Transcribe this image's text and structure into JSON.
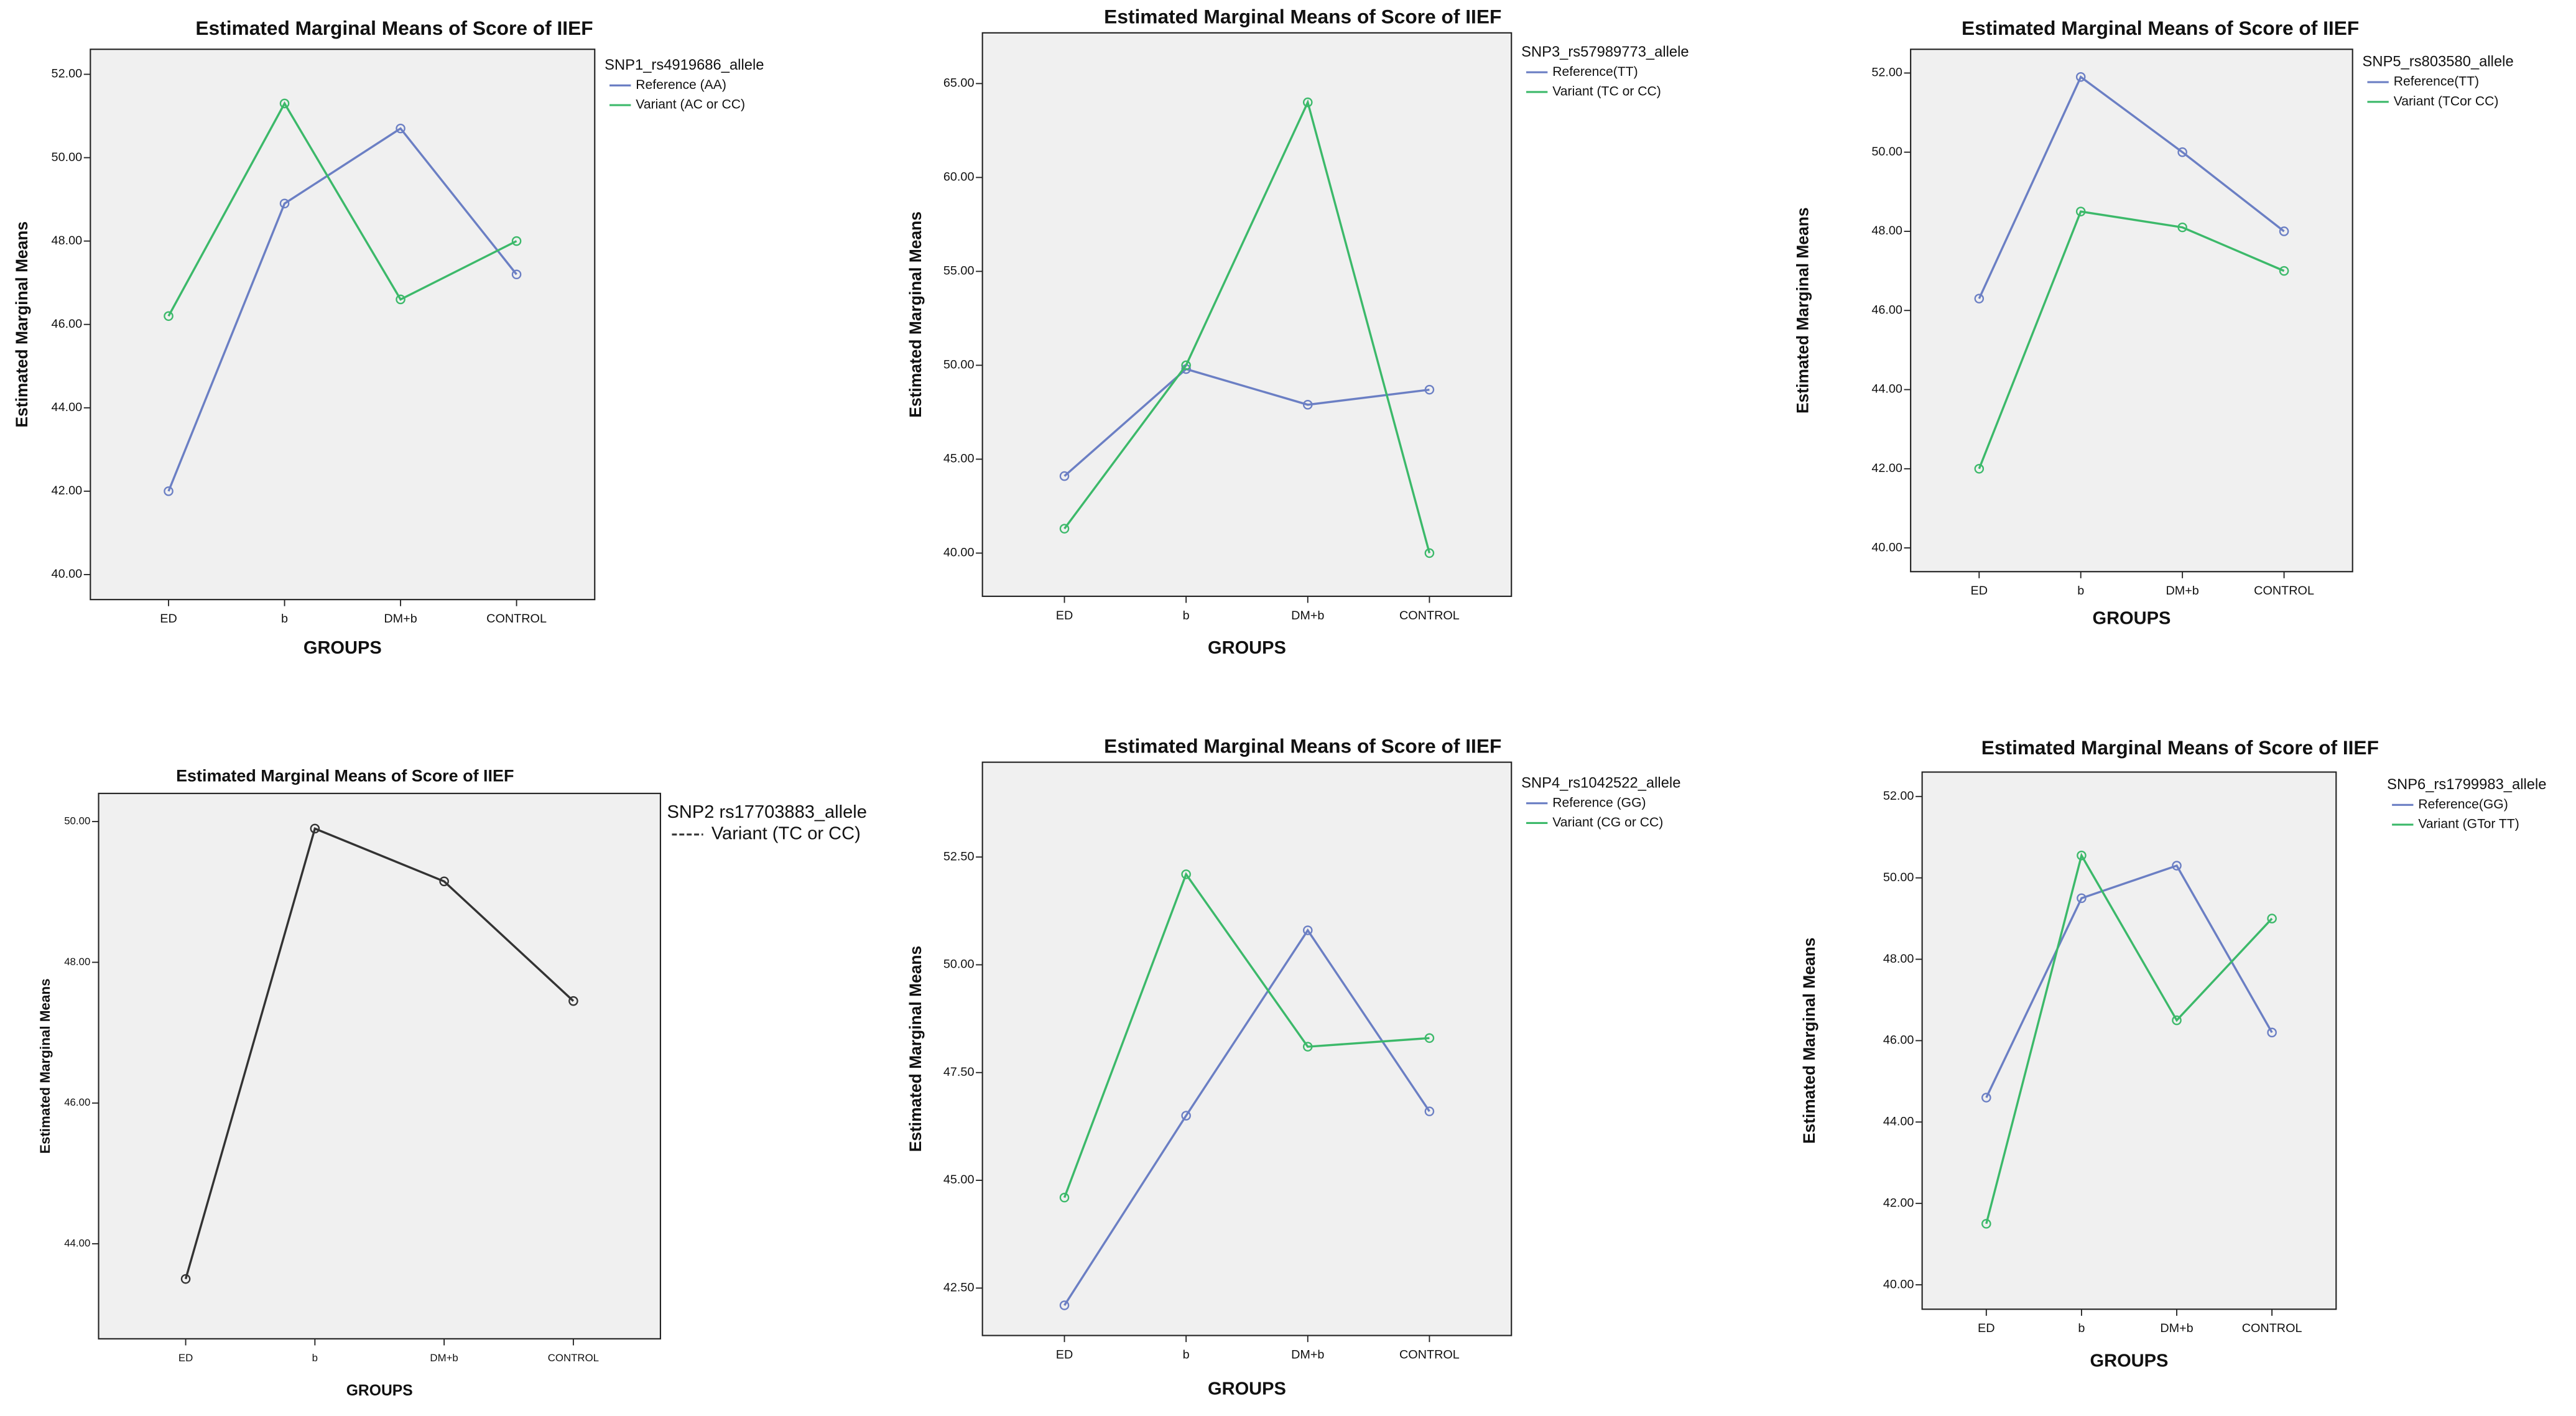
{
  "chart_data": [
    {
      "type": "line",
      "title": "Estimated Marginal Means of Score of IIEF",
      "x_label": "GROUPS",
      "y_label": "Estimated Marginal Means",
      "legend_title": "SNP1_rs4919686_allele",
      "categories": [
        "ED",
        "b",
        "DM+b",
        "CONTROL"
      ],
      "series": [
        {
          "name": "Reference  (AA)",
          "color": "#6b7fc4",
          "values": [
            42.0,
            48.9,
            50.7,
            47.2
          ]
        },
        {
          "name": "Variant (AC or CC)",
          "color": "#3cb96a",
          "values": [
            46.2,
            51.3,
            46.6,
            48.0
          ]
        }
      ],
      "ylim": [
        39.4,
        52.6
      ],
      "yticks": [
        {
          "value": 40,
          "label": "40.00"
        },
        {
          "value": 42,
          "label": "42.00"
        },
        {
          "value": 44,
          "label": "44.00"
        },
        {
          "value": 46,
          "label": "46.00"
        },
        {
          "value": 48,
          "label": "48.00"
        },
        {
          "value": 50,
          "label": "50.00"
        },
        {
          "value": 52,
          "label": "52.00"
        }
      ]
    },
    {
      "type": "line",
      "title": "Estimated Marginal Means of Score of IIEF",
      "x_label": "GROUPS",
      "y_label": "Estimated Marginal Means",
      "legend_title": "SNP3_rs57989773_allele",
      "categories": [
        "ED",
        "b",
        "DM+b",
        "CONTROL"
      ],
      "series": [
        {
          "name": "Reference(TT)",
          "color": "#6b7fc4",
          "values": [
            44.1,
            49.8,
            47.9,
            48.7
          ]
        },
        {
          "name": "Variant (TC or CC)",
          "color": "#3cb96a",
          "values": [
            41.3,
            50.0,
            64.0,
            40.0
          ]
        }
      ],
      "ylim": [
        37.7,
        67.7
      ],
      "yticks": [
        {
          "value": 40,
          "label": "40.00"
        },
        {
          "value": 45,
          "label": "45.00"
        },
        {
          "value": 50,
          "label": "50.00"
        },
        {
          "value": 55,
          "label": "55.00"
        },
        {
          "value": 60,
          "label": "60.00"
        },
        {
          "value": 65,
          "label": "65.00"
        }
      ]
    },
    {
      "type": "line",
      "title": "Estimated Marginal Means of Score of IIEF",
      "x_label": "GROUPS",
      "y_label": "Estimated Marginal Means",
      "legend_title": "SNP5_rs803580_allele",
      "categories": [
        "ED",
        "b",
        "DM+b",
        "CONTROL"
      ],
      "series": [
        {
          "name": "Reference(TT)",
          "color": "#6b7fc4",
          "values": [
            46.3,
            51.9,
            50.0,
            48.0
          ]
        },
        {
          "name": "Variant (TCor CC)",
          "color": "#3cb96a",
          "values": [
            42.0,
            48.5,
            48.1,
            47.0
          ]
        }
      ],
      "ylim": [
        39.4,
        52.6
      ],
      "yticks": [
        {
          "value": 40,
          "label": "40.00"
        },
        {
          "value": 42,
          "label": "42.00"
        },
        {
          "value": 44,
          "label": "44.00"
        },
        {
          "value": 46,
          "label": "46.00"
        },
        {
          "value": 48,
          "label": "48.00"
        },
        {
          "value": 50,
          "label": "50.00"
        },
        {
          "value": 52,
          "label": "52.00"
        }
      ]
    },
    {
      "type": "line",
      "title": "Estimated Marginal Means of Score of IIEF",
      "x_label": "GROUPS",
      "y_label": "Estimated Marginal Means",
      "legend_title": "SNP2 rs17703883_allele",
      "categories": [
        "ED",
        "b",
        "DM+b",
        "CONTROL"
      ],
      "series": [
        {
          "name": "Variant (TC or CC)",
          "color": "#333333",
          "values": [
            43.5,
            49.9,
            49.15,
            47.45
          ]
        }
      ],
      "ylim": [
        42.65,
        50.4
      ],
      "yticks": [
        {
          "value": 44,
          "label": "44.00"
        },
        {
          "value": 46,
          "label": "46.00"
        },
        {
          "value": 48,
          "label": "48.00"
        },
        {
          "value": 50,
          "label": "50.00"
        }
      ]
    },
    {
      "type": "line",
      "title": "Estimated Marginal Means of Score of IIEF",
      "x_label": "GROUPS",
      "y_label": "Estimated Marginal Means",
      "legend_title": "SNP4_rs1042522_allele",
      "categories": [
        "ED",
        "b",
        "DM+b",
        "CONTROL"
      ],
      "series": [
        {
          "name": "Reference (GG)",
          "color": "#6b7fc4",
          "values": [
            42.1,
            46.5,
            50.8,
            46.6
          ]
        },
        {
          "name": "Variant (CG or CC)",
          "color": "#3cb96a",
          "values": [
            44.6,
            52.1,
            48.1,
            48.3
          ]
        }
      ],
      "ylim": [
        41.4,
        54.7
      ],
      "yticks": [
        {
          "value": 42.5,
          "label": "42.50"
        },
        {
          "value": 45,
          "label": "45.00"
        },
        {
          "value": 47.5,
          "label": "47.50"
        },
        {
          "value": 50,
          "label": "50.00"
        },
        {
          "value": 52.5,
          "label": "52.50"
        }
      ]
    },
    {
      "type": "line",
      "title": "Estimated Marginal Means of Score of IIEF",
      "x_label": "GROUPS",
      "y_label": "Estimated Marginal Means",
      "legend_title": "SNP6_rs1799983_allele",
      "categories": [
        "ED",
        "b",
        "DM+b",
        "CONTROL"
      ],
      "series": [
        {
          "name": "Reference(GG)",
          "color": "#6b7fc4",
          "values": [
            44.6,
            49.5,
            50.3,
            46.2
          ]
        },
        {
          "name": "Variant (GTor TT)",
          "color": "#3cb96a",
          "values": [
            41.5,
            50.55,
            46.5,
            49.0
          ]
        }
      ],
      "ylim": [
        39.4,
        52.6
      ],
      "yticks": [
        {
          "value": 40,
          "label": "40.00"
        },
        {
          "value": 42,
          "label": "42.00"
        },
        {
          "value": 44,
          "label": "44.00"
        },
        {
          "value": 46,
          "label": "46.00"
        },
        {
          "value": 48,
          "label": "48.00"
        },
        {
          "value": 50,
          "label": "50.00"
        },
        {
          "value": 52,
          "label": "52.00"
        }
      ]
    }
  ]
}
